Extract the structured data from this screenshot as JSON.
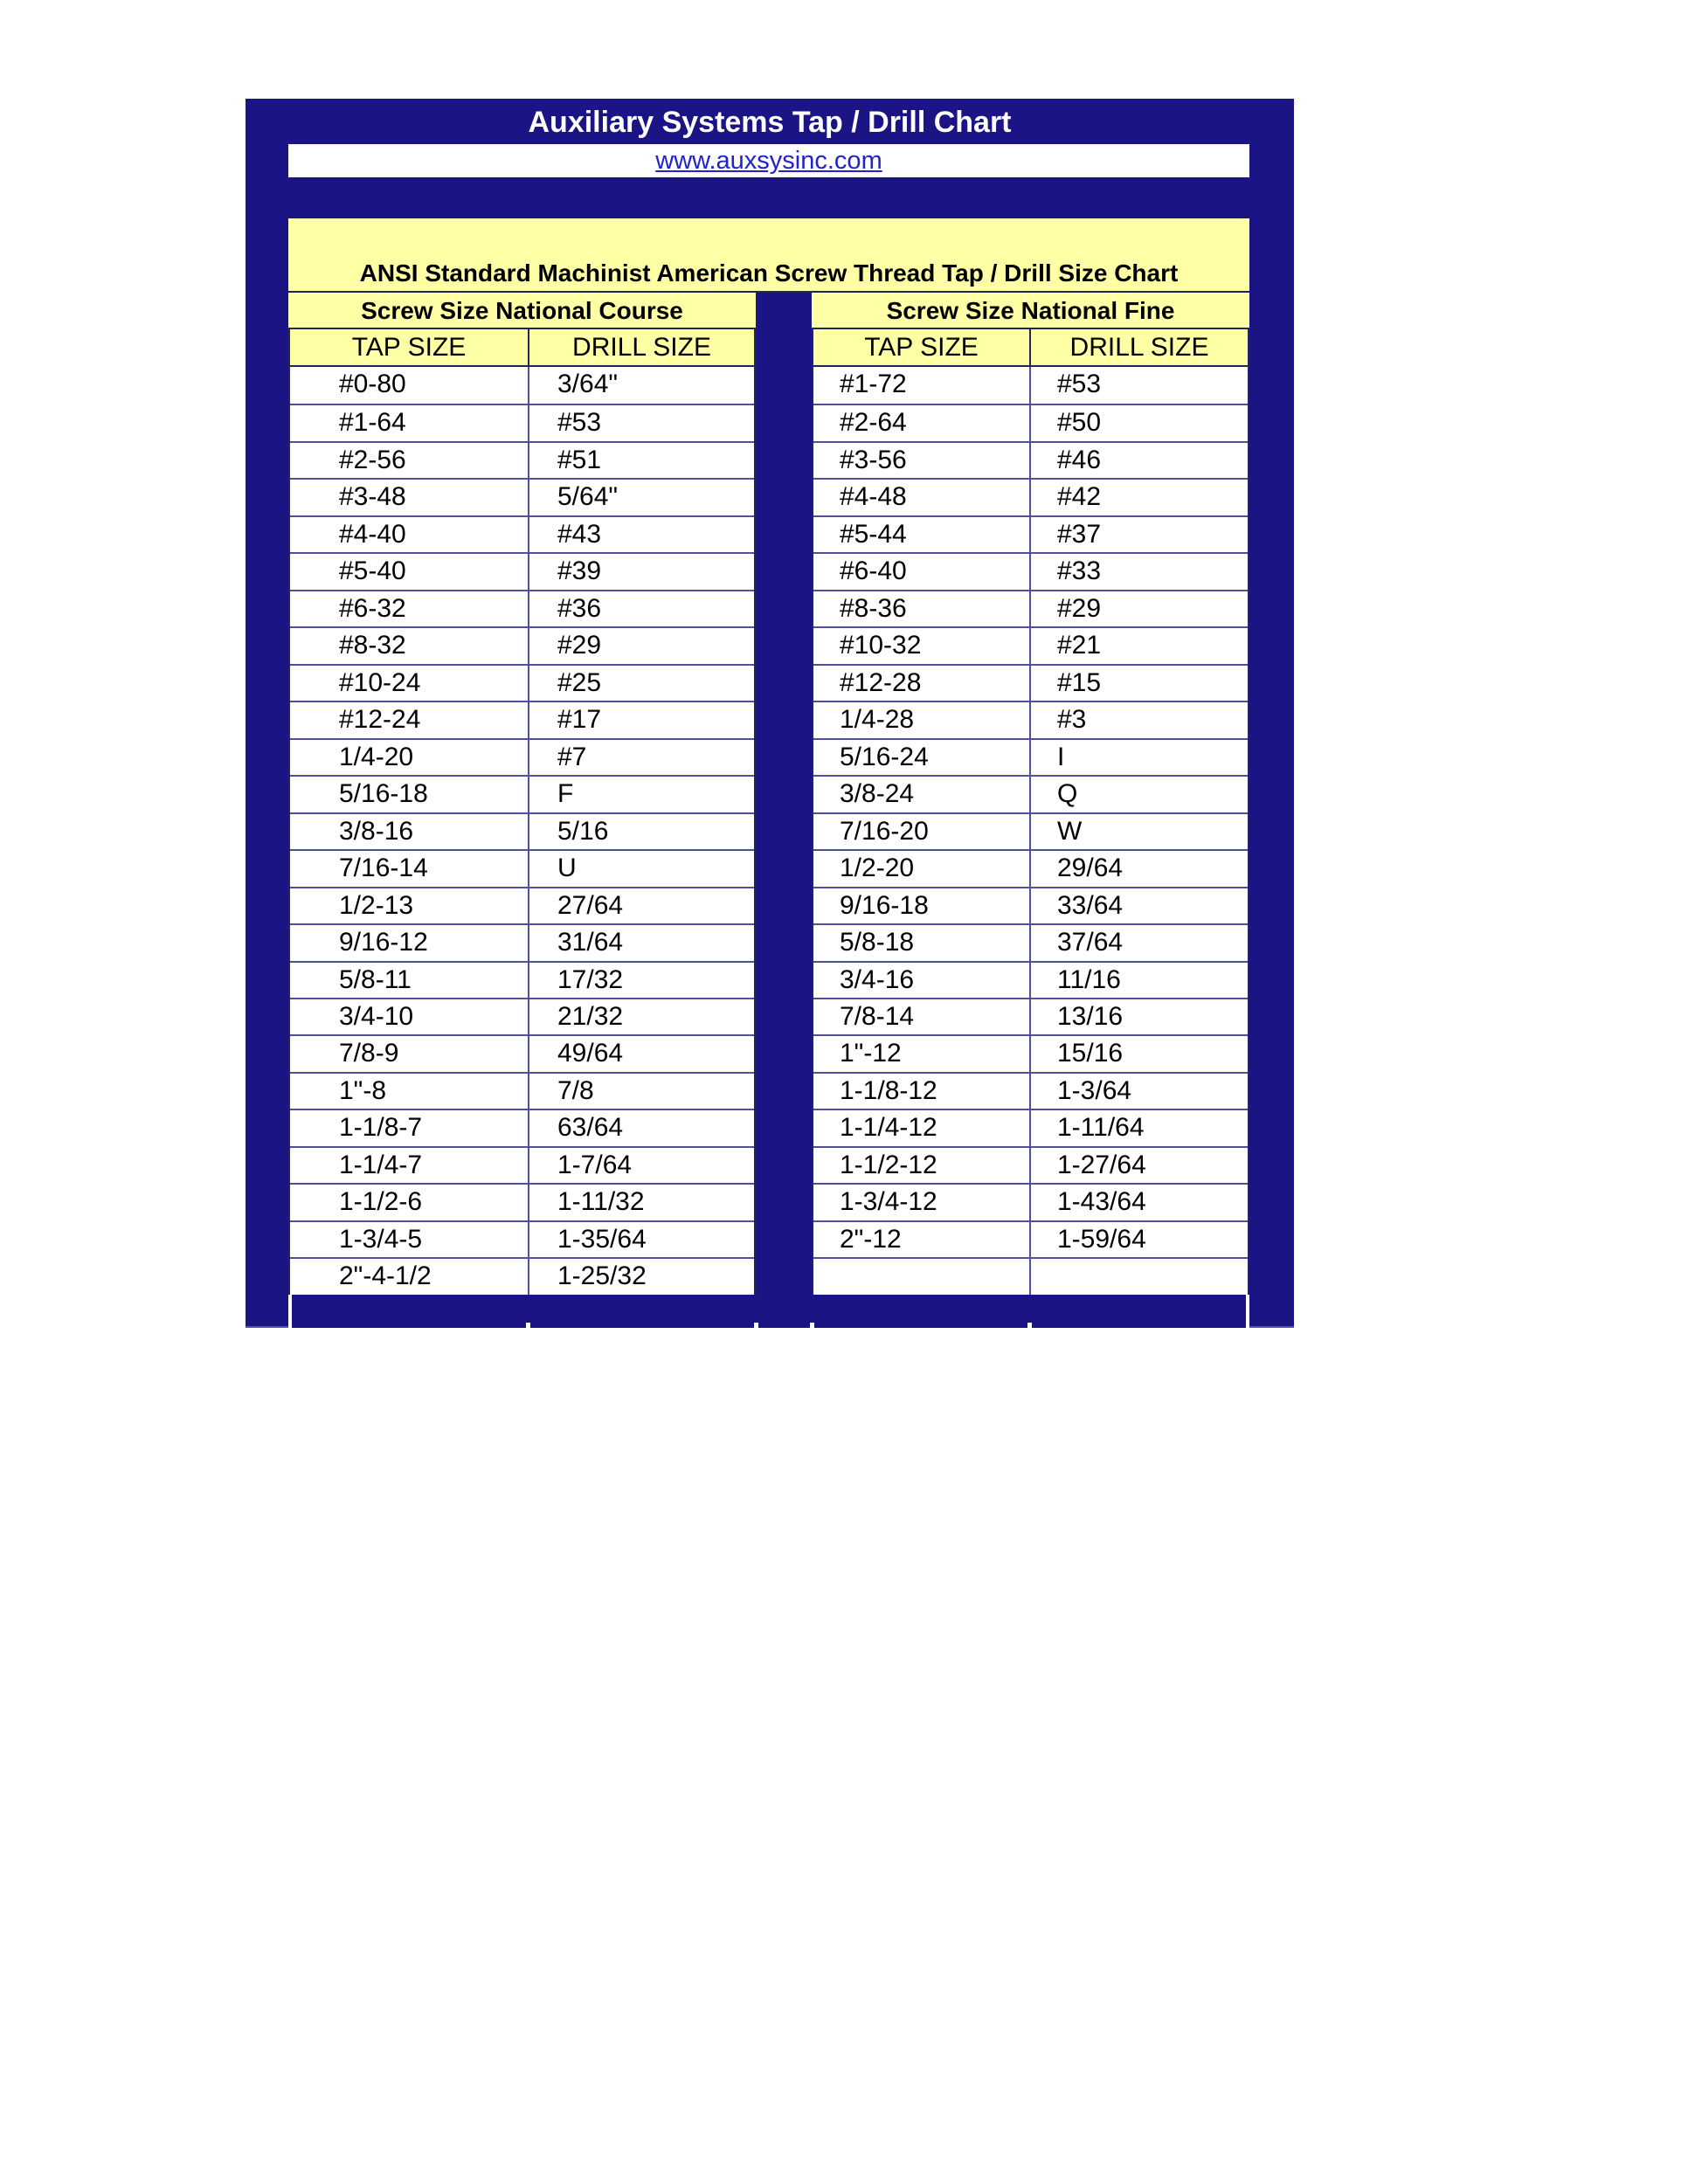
{
  "chart": {
    "title": "Auxiliary Systems Tap / Drill Chart",
    "website": "www.auxsysinc.com",
    "heading": "ANSI Standard Machinist American Screw Thread Tap / Drill Size Chart",
    "colors": {
      "navy": "#1a1485",
      "pale_yellow": "#ffffa6",
      "link_blue": "#2222cc",
      "row_line": "#50509e",
      "dark_line": "#24245c"
    },
    "tables": [
      {
        "section_title": "Screw Size National Course",
        "columns": [
          "TAP SIZE",
          "DRILL SIZE"
        ],
        "rows": [
          [
            "#0-80",
            "3/64\""
          ],
          [
            "#1-64",
            "#53"
          ],
          [
            "#2-56",
            "#51"
          ],
          [
            "#3-48",
            "5/64\""
          ],
          [
            "#4-40",
            "#43"
          ],
          [
            "#5-40",
            "#39"
          ],
          [
            "#6-32",
            "#36"
          ],
          [
            "#8-32",
            "#29"
          ],
          [
            "#10-24",
            "#25"
          ],
          [
            "#12-24",
            "#17"
          ],
          [
            "1/4-20",
            "#7"
          ],
          [
            "5/16-18",
            "F"
          ],
          [
            "3/8-16",
            "5/16"
          ],
          [
            "7/16-14",
            "U"
          ],
          [
            "1/2-13",
            "27/64"
          ],
          [
            "9/16-12",
            "31/64"
          ],
          [
            "5/8-11",
            "17/32"
          ],
          [
            "3/4-10",
            "21/32"
          ],
          [
            "7/8-9",
            "49/64"
          ],
          [
            "1\"-8",
            "7/8"
          ],
          [
            "1-1/8-7",
            "63/64"
          ],
          [
            "1-1/4-7",
            "1-7/64"
          ],
          [
            "1-1/2-6",
            "1-11/32"
          ],
          [
            "1-3/4-5",
            "1-35/64"
          ],
          [
            "2\"-4-1/2",
            "1-25/32"
          ]
        ]
      },
      {
        "section_title": "Screw Size National Fine",
        "columns": [
          "TAP SIZE",
          "DRILL SIZE"
        ],
        "rows": [
          [
            "#1-72",
            "#53"
          ],
          [
            "#2-64",
            "#50"
          ],
          [
            "#3-56",
            "#46"
          ],
          [
            "#4-48",
            "#42"
          ],
          [
            "#5-44",
            "#37"
          ],
          [
            "#6-40",
            "#33"
          ],
          [
            "#8-36",
            "#29"
          ],
          [
            "#10-32",
            "#21"
          ],
          [
            "#12-28",
            "#15"
          ],
          [
            "1/4-28",
            "#3"
          ],
          [
            "5/16-24",
            "I"
          ],
          [
            "3/8-24",
            "Q"
          ],
          [
            "7/16-20",
            "W"
          ],
          [
            "1/2-20",
            "29/64"
          ],
          [
            "9/16-18",
            "33/64"
          ],
          [
            "5/8-18",
            "37/64"
          ],
          [
            "3/4-16",
            "11/16"
          ],
          [
            "7/8-14",
            "13/16"
          ],
          [
            "1\"-12",
            "15/16"
          ],
          [
            "1-1/8-12",
            "1-3/64"
          ],
          [
            "1-1/4-12",
            "1-11/64"
          ],
          [
            "1-1/2-12",
            "1-27/64"
          ],
          [
            "1-3/4-12",
            "1-43/64"
          ],
          [
            "2\"-12",
            "1-59/64"
          ],
          [
            "",
            ""
          ]
        ]
      }
    ]
  }
}
